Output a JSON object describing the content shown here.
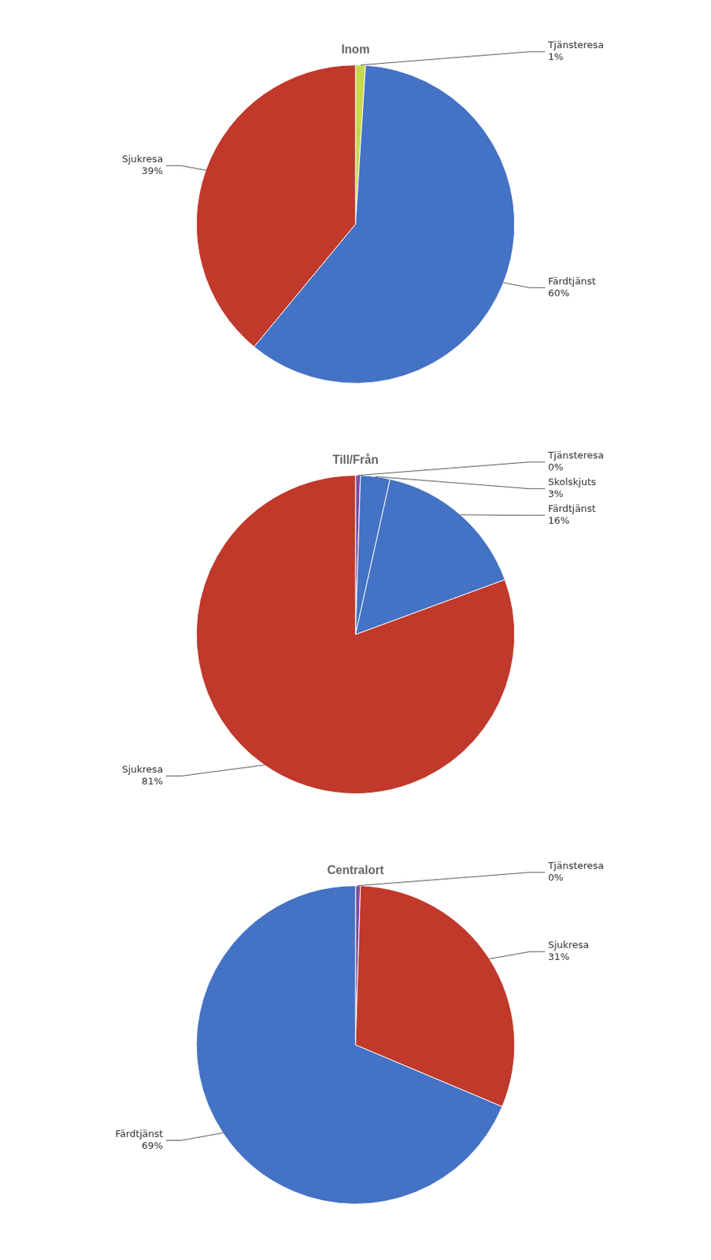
{
  "chart_data": [
    {
      "type": "pie",
      "title": "Inom",
      "categories": [
        "Tjänsteresa",
        "Färdtjänst",
        "Sjukresa"
      ],
      "values": [
        1,
        60,
        39
      ],
      "value_labels": [
        "1%",
        "60%",
        "39%"
      ],
      "colors": [
        "#c8d84a",
        "#4472c4",
        "#c0392b"
      ],
      "data_labels": true
    },
    {
      "type": "pie",
      "title": "Till/Från",
      "categories": [
        "Tjänsteresa",
        "Skolskjuts",
        "Färdtjänst",
        "Sjukresa"
      ],
      "values": [
        0.5,
        3,
        16,
        81
      ],
      "value_labels": [
        "0%",
        "3%",
        "16%",
        "81%"
      ],
      "colors": [
        "#7b4fa6",
        "#4472c4",
        "#4472c4",
        "#c0392b"
      ],
      "data_labels": true
    },
    {
      "type": "pie",
      "title": "Centralort",
      "categories": [
        "Tjänsteresa",
        "Sjukresa",
        "Färdtjänst"
      ],
      "values": [
        0.5,
        31,
        69
      ],
      "value_labels": [
        "0%",
        "31%",
        "69%"
      ],
      "colors": [
        "#7b4fa6",
        "#c0392b",
        "#4472c4"
      ],
      "data_labels": true
    }
  ]
}
